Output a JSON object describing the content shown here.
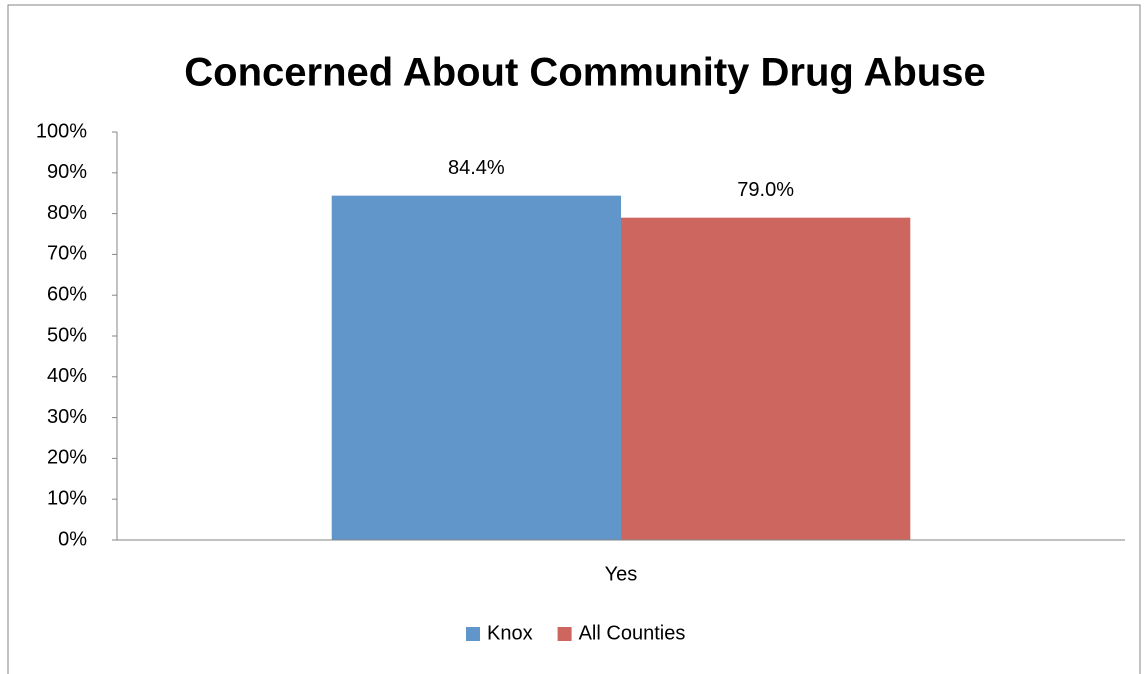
{
  "chart_data": {
    "type": "bar",
    "title": "Concerned About Community Drug Abuse",
    "categories": [
      "Yes"
    ],
    "series": [
      {
        "name": "Knox",
        "color": "#6096c9",
        "values": [
          84.4
        ],
        "value_labels": [
          "84.4%"
        ]
      },
      {
        "name": "All Counties",
        "color": "#cc665e",
        "values": [
          79.0
        ],
        "value_labels": [
          "79.0%"
        ]
      }
    ],
    "ylim": [
      0,
      100
    ],
    "yticks": [
      {
        "value": 0,
        "label": "0%"
      },
      {
        "value": 10,
        "label": "10%"
      },
      {
        "value": 20,
        "label": "20%"
      },
      {
        "value": 30,
        "label": "30%"
      },
      {
        "value": 40,
        "label": "40%"
      },
      {
        "value": 50,
        "label": "50%"
      },
      {
        "value": 60,
        "label": "60%"
      },
      {
        "value": 70,
        "label": "70%"
      },
      {
        "value": 80,
        "label": "80%"
      },
      {
        "value": 90,
        "label": "90%"
      },
      {
        "value": 100,
        "label": "100%"
      }
    ],
    "grid": false,
    "legend": "bottom"
  }
}
